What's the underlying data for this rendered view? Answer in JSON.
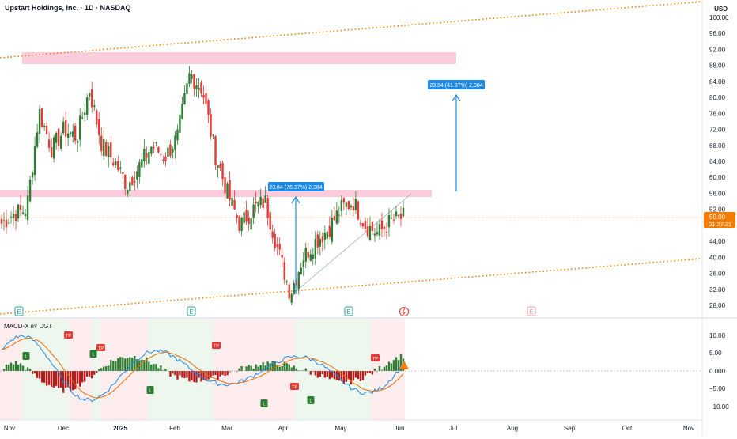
{
  "header": {
    "symbol_title": "Upstart Holdings, Inc. · 1D · NASDAQ",
    "currency": "USD"
  },
  "price_axis": {
    "ticks": [
      "100.00",
      "96.00",
      "92.00",
      "88.00",
      "84.00",
      "80.00",
      "76.00",
      "72.00",
      "68.00",
      "64.00",
      "60.00",
      "56.00",
      "52.00",
      "48.00",
      "44.00",
      "40.00",
      "36.00",
      "32.00",
      "28.00"
    ],
    "last_price": "50.00",
    "countdown": "01:27:21"
  },
  "indicator": {
    "title": "MACD-X ʙʏ DGT",
    "ticks": [
      "10.00",
      "5.00",
      "0.000",
      "−5.00",
      "−10.00"
    ]
  },
  "time_axis": [
    "Nov",
    "Dec",
    "2025",
    "Feb",
    "Mar",
    "Apr",
    "May",
    "Jun",
    "Jul",
    "Aug",
    "Sep",
    "Oct",
    "Nov"
  ],
  "annotations": {
    "measure_1": "23.84 (76.37%) 2,384",
    "measure_2": "23.84 (41.97%) 2,384",
    "earnings_marker": "E",
    "dividend_marker": "E",
    "tp_label": "TP",
    "l_label": "L"
  },
  "colors": {
    "up": "#2e7d32",
    "down": "#e53935",
    "channel": "#f57c00",
    "zone": "#f8bbd0",
    "measure": "#1e88e5",
    "price_line": "#f57c00"
  },
  "chart_data": {
    "type": "candlestick",
    "title": "Upstart Holdings, Inc. · 1D · NASDAQ",
    "y_unit": "USD",
    "ylim": [
      26,
      102
    ],
    "x": [
      "Nov",
      "Dec",
      "2025",
      "Feb",
      "Mar",
      "Apr",
      "May",
      "Jun"
    ],
    "close_path": [
      48.5,
      51.0,
      52.0,
      76.5,
      67.0,
      72.0,
      70.0,
      82.0,
      68.0,
      64.0,
      58.0,
      63.0,
      68.0,
      65.0,
      70.0,
      86.0,
      82.0,
      66.0,
      56.0,
      48.0,
      52.0,
      54.0,
      42.0,
      31.0,
      40.0,
      44.0,
      47.0,
      52.0,
      54.0,
      48.0,
      46.0,
      49.0,
      50.0
    ],
    "last_price": 50.0,
    "resistance_zones": [
      [
        88.0,
        91.0
      ],
      [
        55.5,
        57.0
      ]
    ],
    "channel_upper": [
      [
        0,
        89.5
      ],
      [
        1,
        103.0
      ]
    ],
    "channel_lower": [
      [
        0,
        27.5
      ],
      [
        1,
        41.0
      ]
    ],
    "macd_ylim": [
      -12,
      12
    ]
  }
}
